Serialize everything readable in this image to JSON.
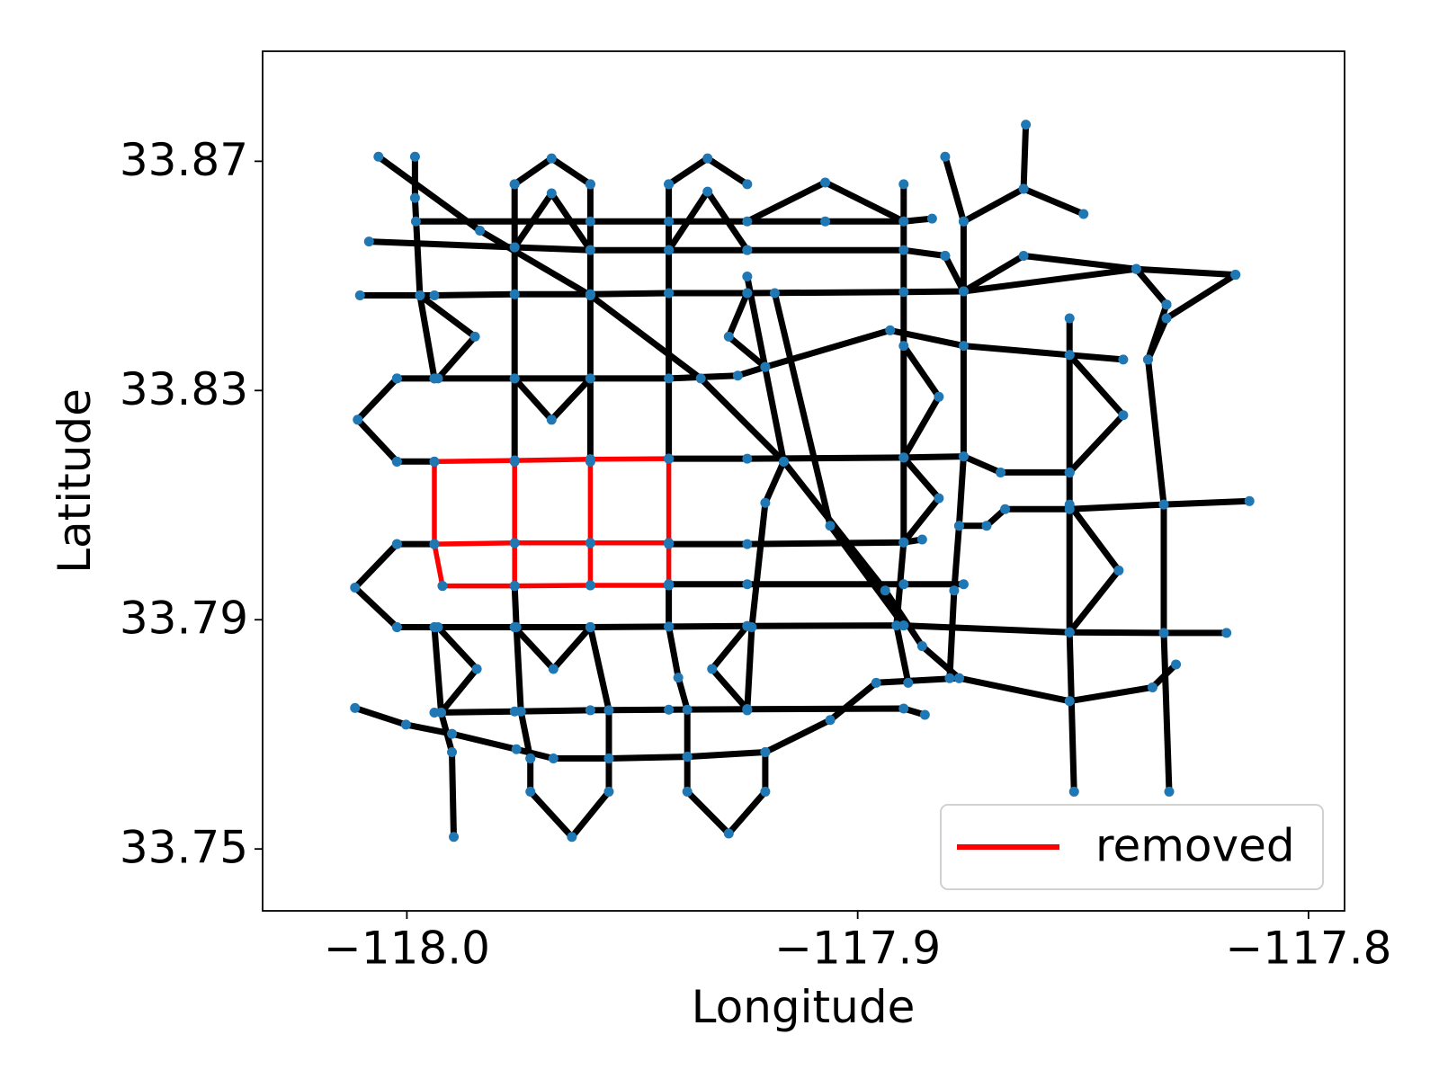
{
  "chart_data": {
    "type": "network",
    "xlabel": "Longitude",
    "ylabel": "Latitude",
    "xlim": [
      -118.032,
      -117.792
    ],
    "ylim": [
      33.7392,
      33.8892
    ],
    "xticks": [
      {
        "value": -118.0,
        "label": "−118.0"
      },
      {
        "value": -117.9,
        "label": "−117.9"
      },
      {
        "value": -117.8,
        "label": "−117.8"
      }
    ],
    "yticks": [
      33.75,
      33.79,
      33.83,
      33.87
    ],
    "legend": "lower right",
    "network": {
      "color": "#000000",
      "node_color": "#1f77b4",
      "edges": [
        {
          "x": [
            -117.998,
            -117.9593,
            -117.9419,
            -117.9072,
            -117.8898,
            -117.8835
          ],
          "y": [
            33.8595,
            33.8595,
            33.8595,
            33.8595,
            33.8595,
            33.86
          ]
        },
        {
          "x": [
            -117.9245,
            -117.9072,
            -117.8898
          ],
          "y": [
            33.8595,
            33.8663,
            33.8595
          ]
        },
        {
          "x": [
            -118.0084,
            -117.9761,
            -117.9593,
            -117.9419,
            -117.9245,
            -117.8898,
            -117.8806
          ],
          "y": [
            33.856,
            33.855,
            33.8545,
            33.8545,
            33.8545,
            33.8545,
            33.8535
          ]
        },
        {
          "x": [
            -118.0104,
            -117.9939,
            -117.9761,
            -117.9593,
            -117.9419,
            -117.9245,
            -117.8898,
            -117.8765,
            -117.8382,
            -117.8162
          ],
          "y": [
            33.8466,
            33.8466,
            33.8468,
            33.8468,
            33.847,
            33.847,
            33.8472,
            33.8473,
            33.8512,
            33.8502
          ]
        },
        {
          "x": [
            -118.0022,
            -117.9939,
            -117.9761,
            -117.9593,
            -117.9419,
            -117.9266,
            -117.9205,
            -117.8928,
            -117.8765,
            -117.853,
            -117.8411
          ],
          "y": [
            33.8321,
            33.8321,
            33.8321,
            33.8321,
            33.8321,
            33.8326,
            33.8341,
            33.8405,
            33.8378,
            33.8362,
            33.8354
          ]
        },
        {
          "x": [
            -118.0022,
            -117.9939
          ],
          "y": [
            33.8176,
            33.8176
          ]
        },
        {
          "x": [
            -117.9419,
            -117.9245,
            -117.8898,
            -117.8765,
            -117.8683,
            -117.853
          ],
          "y": [
            33.8181,
            33.8181,
            33.8183,
            33.8185,
            33.8157,
            33.8157
          ]
        },
        {
          "x": [
            -118.0022,
            -117.9939
          ],
          "y": [
            33.8032,
            33.8032
          ]
        },
        {
          "x": [
            -117.9419,
            -117.9245,
            -117.8898,
            -117.8857
          ],
          "y": [
            33.8032,
            33.8032,
            33.8035,
            33.804
          ]
        },
        {
          "x": [
            -117.8775,
            -117.8714,
            -117.8673,
            -117.853,
            -117.8321,
            -117.8131
          ],
          "y": [
            33.8064,
            33.8064,
            33.8093,
            33.8093,
            33.8101,
            33.8107
          ]
        },
        {
          "x": [
            -117.9419,
            -117.9245,
            -117.8898,
            -117.8765
          ],
          "y": [
            33.7962,
            33.7962,
            33.7962,
            33.7962
          ]
        },
        {
          "x": [
            -118.0022,
            -117.9939,
            -117.9761,
            -117.9593,
            -117.9419,
            -117.9245,
            -117.8898,
            -117.853,
            -117.8321,
            -117.8182
          ],
          "y": [
            33.7887,
            33.7887,
            33.7887,
            33.7887,
            33.7888,
            33.7889,
            33.789,
            33.7878,
            33.7877,
            33.7877
          ]
        },
        {
          "x": [
            -117.9939,
            -117.9761,
            -117.9593,
            -117.9419,
            -117.9245,
            -117.8898,
            -117.8851
          ],
          "y": [
            33.7738,
            33.774,
            33.7742,
            33.7743,
            33.7744,
            33.7745,
            33.7734
          ]
        },
        {
          "x": [
            -118.0115,
            -118.0002,
            -117.99,
            -117.9757,
            -117.9675,
            -117.9552,
            -117.9378,
            -117.9205,
            -117.9061,
            -117.8959,
            -117.8775,
            -117.853,
            -117.8346,
            -117.8294
          ],
          "y": [
            33.7746,
            33.7717,
            33.7701,
            33.7674,
            33.7658,
            33.7658,
            33.7661,
            33.7669,
            33.7725,
            33.779,
            33.7798,
            33.7758,
            33.7782,
            33.7822
          ]
        },
        {
          "x": [
            -117.9726,
            -117.9726,
            -117.9634,
            -117.9552,
            -117.9552
          ],
          "y": [
            33.7658,
            33.76,
            33.7521,
            33.76,
            33.7658
          ]
        },
        {
          "x": [
            -117.9378,
            -117.9378,
            -117.9286,
            -117.9205,
            -117.9205
          ],
          "y": [
            33.7661,
            33.76,
            33.7527,
            33.76,
            33.7669
          ]
        },
        {
          "x": [
            -117.9982,
            -117.9982,
            -117.9971,
            -117.9939
          ],
          "y": [
            33.8708,
            33.8636,
            33.8466,
            33.8321
          ]
        },
        {
          "x": [
            -117.9939,
            -117.9924,
            -117.99,
            -117.9896
          ],
          "y": [
            33.7887,
            33.7738,
            33.7669,
            33.7521
          ]
        },
        {
          "x": [
            -117.9761,
            -117.9761,
            -117.9761
          ],
          "y": [
            33.866,
            33.8468,
            33.8176
          ]
        },
        {
          "x": [
            -117.9761,
            -117.9757,
            -117.9747,
            -117.9726
          ],
          "y": [
            33.7959,
            33.7887,
            33.774,
            33.7658
          ]
        },
        {
          "x": [
            -117.9593,
            -117.9593,
            -117.9593
          ],
          "y": [
            33.866,
            33.8468,
            33.8176
          ]
        },
        {
          "x": [
            -117.9593,
            -117.9552,
            -117.9552
          ],
          "y": [
            33.7887,
            33.7742,
            33.7658
          ]
        },
        {
          "x": [
            -117.9419,
            -117.9419,
            -117.9419
          ],
          "y": [
            33.866,
            33.847,
            33.8181
          ]
        },
        {
          "x": [
            -117.9419,
            -117.9419,
            -117.9398,
            -117.9378,
            -117.9378
          ],
          "y": [
            33.7962,
            33.7888,
            33.7799,
            33.7743,
            33.7661
          ]
        },
        {
          "x": [
            -117.8898,
            -117.8898,
            -117.8914,
            -117.8888
          ],
          "y": [
            33.866,
            33.8035,
            33.789,
            33.779
          ]
        },
        {
          "x": [
            -117.8806,
            -117.8765,
            -117.8765,
            -117.8765,
            -117.8775,
            -117.8786,
            -117.8796
          ],
          "y": [
            33.8708,
            33.8595,
            33.8473,
            33.8185,
            33.8064,
            33.7951,
            33.7798
          ]
        },
        {
          "x": [
            -117.853,
            -117.853,
            -117.853,
            -117.852
          ],
          "y": [
            33.8426,
            33.8157,
            33.7878,
            33.76
          ]
        },
        {
          "x": [
            -117.8315,
            -117.8356,
            -117.8321,
            -117.8321,
            -117.8309
          ],
          "y": [
            33.845,
            33.8354,
            33.8101,
            33.7877,
            33.76
          ]
        },
        {
          "x": [
            -117.8627,
            -117.8632,
            -117.8499
          ],
          "y": [
            33.8764,
            33.8652,
            33.8608
          ]
        },
        {
          "x": [
            -117.8632,
            -117.8765
          ],
          "y": [
            33.8652,
            33.8595
          ]
        },
        {
          "x": [
            -118.0063,
            -117.9838,
            -117.9593,
            -117.9348,
            -117.9164,
            -117.8939,
            -117.8857,
            -117.8775
          ],
          "y": [
            33.8708,
            33.8579,
            33.8466,
            33.8321,
            33.8176,
            33.7951,
            33.7854,
            33.7798
          ]
        },
        {
          "x": [
            -117.9245,
            -117.9164,
            -117.9205,
            -117.9235,
            -117.9245
          ],
          "y": [
            33.8499,
            33.8176,
            33.8104,
            33.7887,
            33.7742
          ]
        },
        {
          "x": [
            -117.9184,
            -117.9061,
            -117.8898
          ],
          "y": [
            33.847,
            33.8064,
            33.789
          ]
        },
        {
          "x": [
            -117.9761,
            -117.9679,
            -117.9593
          ],
          "y": [
            33.866,
            33.8705,
            33.866
          ]
        },
        {
          "x": [
            -117.9761,
            -117.9679,
            -117.9593
          ],
          "y": [
            33.855,
            33.8644,
            33.8545
          ]
        },
        {
          "x": [
            -117.9419,
            -117.9333,
            -117.9245
          ],
          "y": [
            33.866,
            33.8705,
            33.866
          ]
        },
        {
          "x": [
            -117.9419,
            -117.9333,
            -117.9245
          ],
          "y": [
            33.8545,
            33.8647,
            33.8545
          ]
        },
        {
          "x": [
            -118.0022,
            -118.0109,
            -118.0022
          ],
          "y": [
            33.8321,
            33.8249,
            33.8176
          ]
        },
        {
          "x": [
            -118.0022,
            -118.0115,
            -118.0022
          ],
          "y": [
            33.8032,
            33.7956,
            33.7887
          ]
        },
        {
          "x": [
            -117.9761,
            -117.9679,
            -117.9593
          ],
          "y": [
            33.8321,
            33.8249,
            33.8321
          ]
        },
        {
          "x": [
            -117.9761,
            -117.9675,
            -117.9593
          ],
          "y": [
            33.7887,
            33.7814,
            33.7887
          ]
        },
        {
          "x": [
            -117.9971,
            -117.9849,
            -117.9931
          ],
          "y": [
            33.8466,
            33.8394,
            33.8321
          ]
        },
        {
          "x": [
            -117.9931,
            -117.9845,
            -117.9924
          ],
          "y": [
            33.7887,
            33.7814,
            33.7738
          ]
        },
        {
          "x": [
            -117.8898,
            -117.882,
            -117.8898
          ],
          "y": [
            33.8378,
            33.8289,
            33.8183
          ]
        },
        {
          "x": [
            -117.8898,
            -117.882,
            -117.8898
          ],
          "y": [
            33.8183,
            33.8112,
            33.8035
          ]
        },
        {
          "x": [
            -117.853,
            -117.8411,
            -117.853
          ],
          "y": [
            33.8362,
            33.8257,
            33.8157
          ]
        },
        {
          "x": [
            -117.853,
            -117.8421,
            -117.853
          ],
          "y": [
            33.8101,
            33.7986,
            33.7878
          ]
        },
        {
          "x": [
            -117.9245,
            -117.9323,
            -117.9245
          ],
          "y": [
            33.7889,
            33.7814,
            33.7744
          ]
        },
        {
          "x": [
            -117.9245,
            -117.9286,
            -117.9205
          ],
          "y": [
            33.847,
            33.8394,
            33.8341
          ]
        },
        {
          "x": [
            -117.8806,
            -117.8765,
            -117.8632,
            -117.8382,
            -117.8315
          ],
          "y": [
            33.8535,
            33.8473,
            33.8535,
            33.8512,
            33.845
          ]
        },
        {
          "x": [
            -117.8162,
            -117.8315,
            -117.8356
          ],
          "y": [
            33.8502,
            33.8426,
            33.8354
          ]
        }
      ]
    },
    "removed": {
      "name": "removed",
      "color": "#ff0000",
      "edges": [
        {
          "x": [
            -117.9939,
            -117.9761,
            -117.9593,
            -117.9419
          ],
          "y": [
            33.8176,
            33.8178,
            33.818,
            33.8181
          ]
        },
        {
          "x": [
            -117.9939,
            -117.9761,
            -117.9593,
            -117.9419
          ],
          "y": [
            33.8032,
            33.8034,
            33.8034,
            33.8034
          ]
        },
        {
          "x": [
            -117.9921,
            -117.9761,
            -117.9593,
            -117.9419
          ],
          "y": [
            33.7959,
            33.7959,
            33.796,
            33.796
          ]
        },
        {
          "x": [
            -117.9939,
            -117.9939,
            -117.9921
          ],
          "y": [
            33.8176,
            33.8032,
            33.7959
          ]
        },
        {
          "x": [
            -117.9761,
            -117.9761,
            -117.9761
          ],
          "y": [
            33.8178,
            33.8034,
            33.7959
          ]
        },
        {
          "x": [
            -117.9593,
            -117.9593,
            -117.9593
          ],
          "y": [
            33.818,
            33.8034,
            33.796
          ]
        },
        {
          "x": [
            -117.9419,
            -117.9419,
            -117.9419
          ],
          "y": [
            33.8181,
            33.8034,
            33.796
          ]
        }
      ]
    }
  }
}
